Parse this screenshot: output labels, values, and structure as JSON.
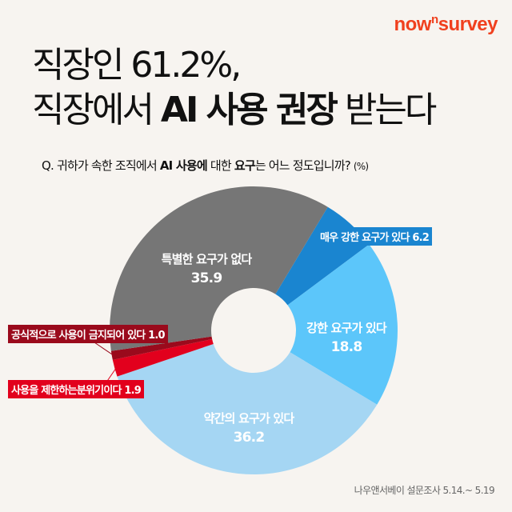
{
  "brand": {
    "logo_pre": "now",
    "logo_sup": "n",
    "logo_post": "survey",
    "color": "#f0401e"
  },
  "title": {
    "line1": "직장인 61.2%,",
    "line2_pre": "직장에서 ",
    "line2_bold": "AI 사용 권장",
    "line2_post": " 받는다"
  },
  "question": {
    "text_pre": "Q. 귀하가 속한 조직에서 ",
    "text_bold": "AI 사용에",
    "text_mid": " 대한 ",
    "text_bold2": "요구",
    "text_post": "는 어느 정도입니까?",
    "unit": "(%)"
  },
  "source": "나우앤서베이 설문조사 5.14.~ 5.19",
  "chart_data": {
    "type": "pie",
    "donut": true,
    "unit": "%",
    "slices": [
      {
        "label": "매우 강한 요구가 있다",
        "value": 6.2,
        "color": "#1a85d0"
      },
      {
        "label": "강한 요구가 있다",
        "value": 18.8,
        "color": "#5cc6fa"
      },
      {
        "label": "약간의 요구가 있다",
        "value": 36.2,
        "color": "#a5d6f3"
      },
      {
        "label": "사용을 제한하는분위기이다",
        "value": 1.9,
        "color": "#e2001d"
      },
      {
        "label": "공식적으로 사용이 금지되어 있다",
        "value": 1.0,
        "color": "#9a0a1c"
      },
      {
        "label": "특별한 요구가 없다",
        "value": 35.9,
        "color": "#767676"
      }
    ]
  }
}
